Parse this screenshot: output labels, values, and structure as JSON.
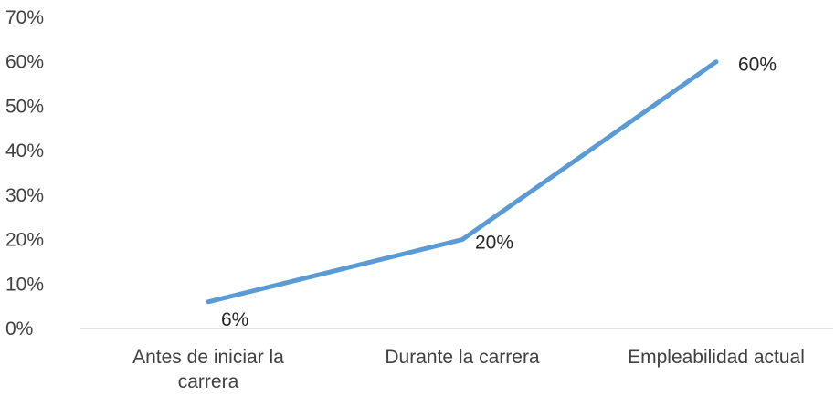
{
  "chart_data": {
    "type": "line",
    "categories": [
      [
        "Antes de iniciar la",
        "carrera"
      ],
      [
        "Durante la carrera"
      ],
      [
        "Empleabilidad actual"
      ]
    ],
    "values": [
      0.06,
      0.2,
      0.6
    ],
    "data_labels": [
      "6%",
      "20%",
      "60%"
    ],
    "y_ticks": [
      "0%",
      "10%",
      "20%",
      "30%",
      "40%",
      "50%",
      "60%",
      "70%"
    ],
    "ylim": [
      0,
      0.7
    ],
    "line_color": "#5b9bd5",
    "axis_color": "#d9d9d9",
    "grid": false,
    "legend": "none"
  }
}
